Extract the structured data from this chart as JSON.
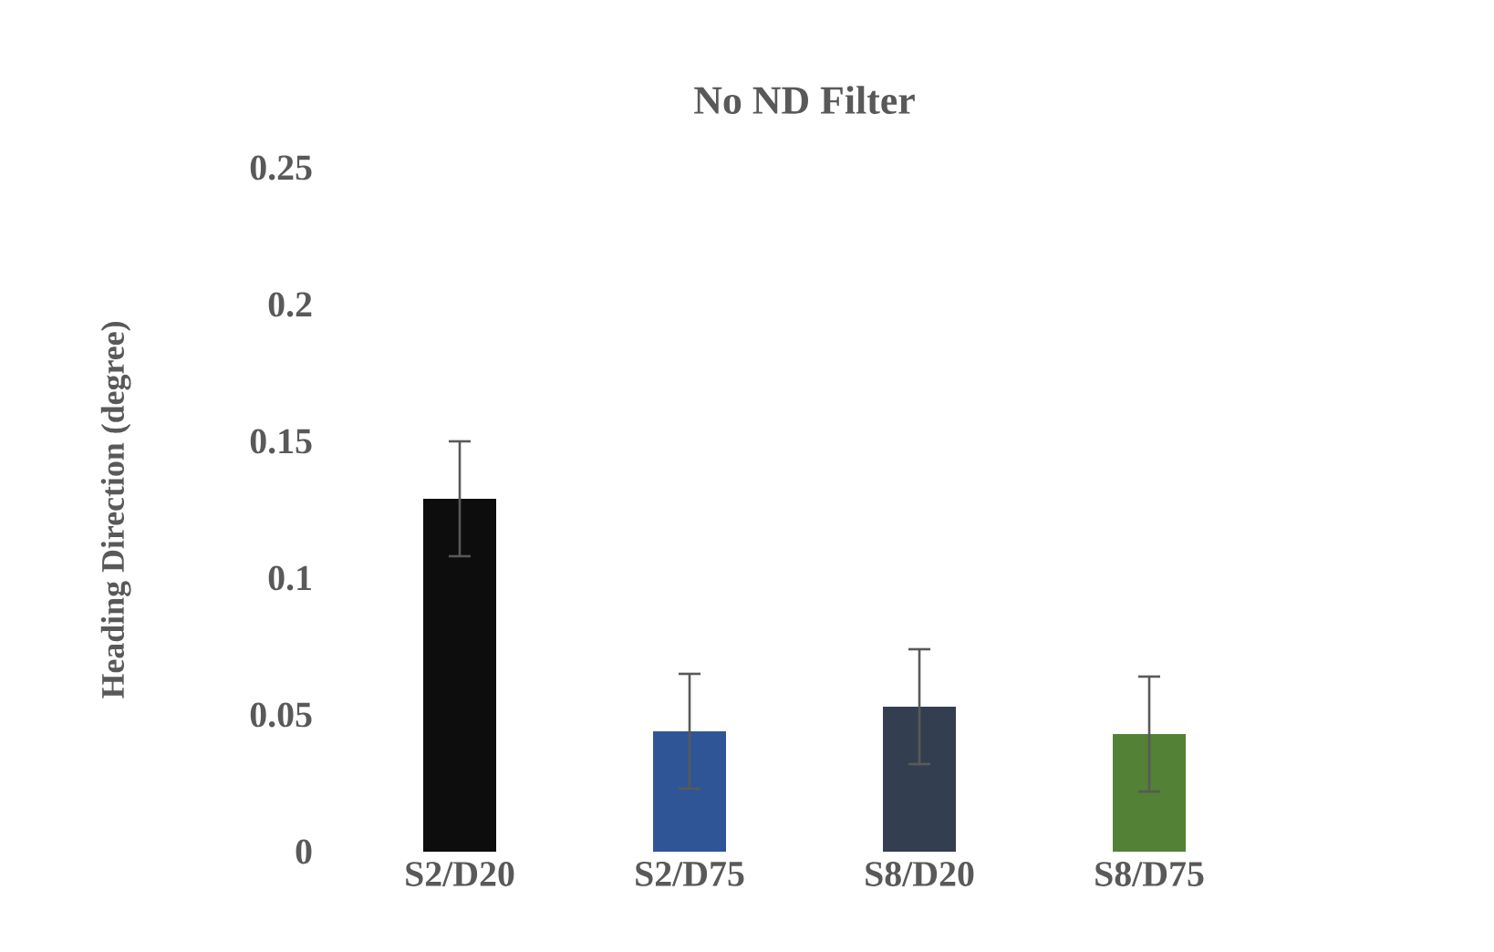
{
  "chart_data": {
    "type": "bar",
    "title": "No ND Filter",
    "ylabel": "Heading Direction (degree)",
    "categories": [
      "S2/D20",
      "S2/D75",
      "S8/D20",
      "S8/D75"
    ],
    "values": [
      0.129,
      0.044,
      0.053,
      0.043
    ],
    "errors": [
      0.021,
      0.021,
      0.021,
      0.021
    ],
    "colors": [
      "#0d0d0d",
      "#2f5597",
      "#333f50",
      "#538135"
    ],
    "ylim": [
      0,
      0.25
    ],
    "yticks": [
      0,
      0.05,
      0.1,
      0.15,
      0.2,
      0.25
    ],
    "grid": false
  }
}
